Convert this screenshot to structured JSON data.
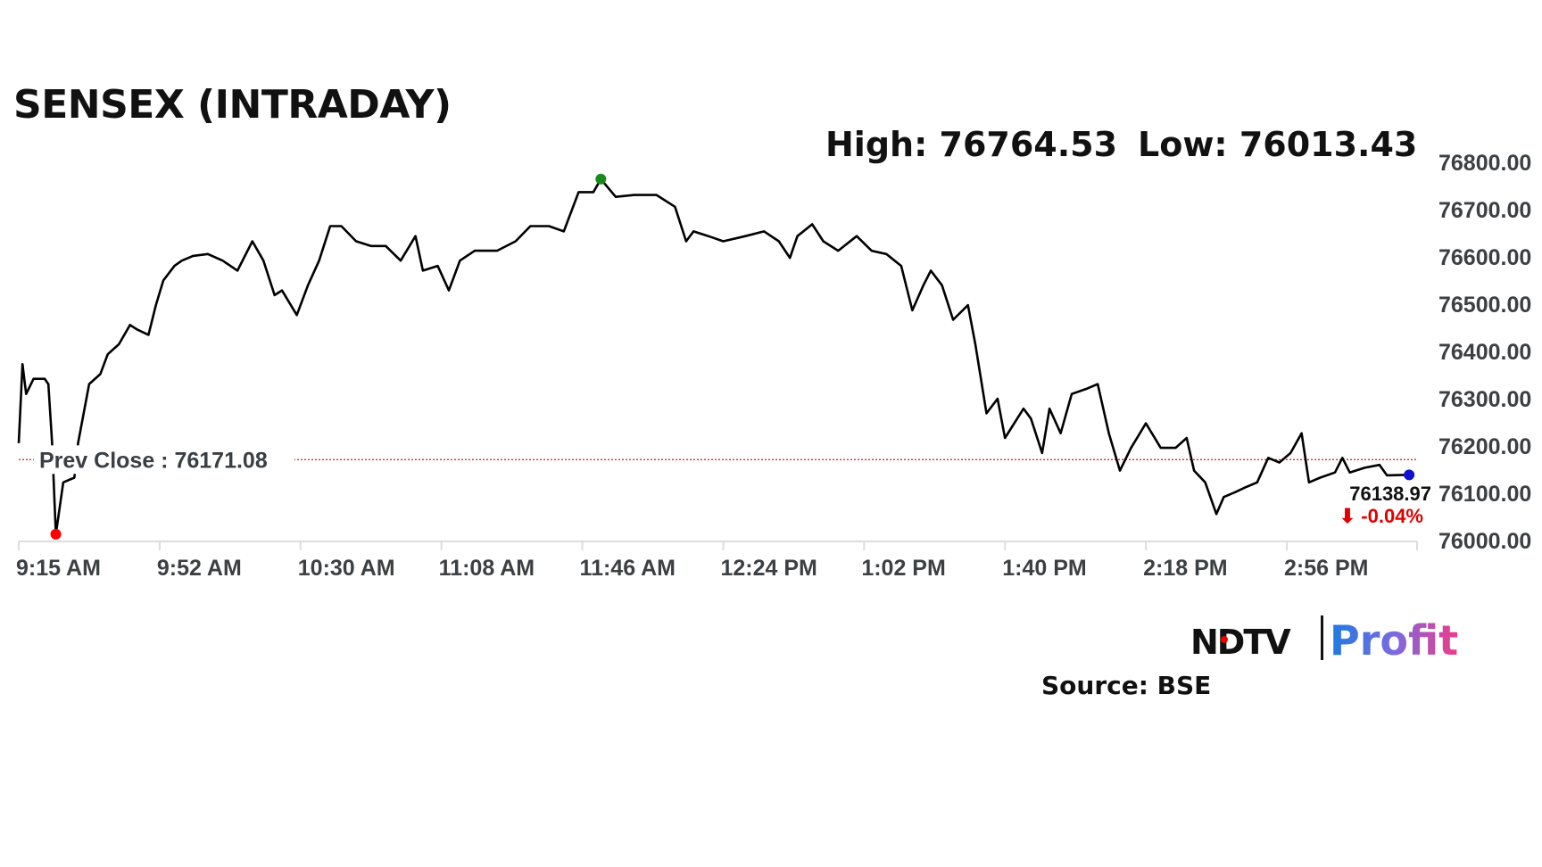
{
  "title": "SENSEX (INTRADAY)",
  "high_label": "High: 76764.53",
  "low_label": "Low: 76013.43",
  "source": "Source: BSE",
  "logo": {
    "part1": "NDTV",
    "part2": "Profit"
  },
  "colors": {
    "line": "#000000",
    "prev_close": "#d0312d",
    "high_marker": "#1a8a1a",
    "low_marker": "#ff0000",
    "last_marker": "#1010d0",
    "change": "#e00000",
    "axis_text": "#3c4043"
  },
  "chart_data": {
    "type": "line",
    "title": "SENSEX (INTRADAY)",
    "xlabel": "",
    "ylabel": "",
    "ylim": [
      76000,
      76800
    ],
    "xlim": [
      "9:15",
      "15:34"
    ],
    "grid": false,
    "y_ticks": [
      "76000.00",
      "76100.00",
      "76200.00",
      "76300.00",
      "76400.00",
      "76500.00",
      "76600.00",
      "76700.00",
      "76800.00"
    ],
    "x_ticks": [
      "9:15 AM",
      "9:52 AM",
      "10:30 AM",
      "11:08 AM",
      "11:46 AM",
      "12:24 PM",
      "1:02 PM",
      "1:40 PM",
      "2:18 PM",
      "2:56 PM"
    ],
    "x_tick_times": [
      "9:15",
      "9:53",
      "10:31",
      "11:09",
      "11:47",
      "12:25",
      "13:03",
      "13:41",
      "14:19",
      "14:57"
    ],
    "prev_close": {
      "label": "Prev Close : 76171.08",
      "value": 76171.08
    },
    "high": {
      "time": "11:52",
      "value": 76764.53
    },
    "low": {
      "time": "9:25",
      "value": 76013.43
    },
    "last": {
      "time": "15:30",
      "value": 76138.97,
      "label": "76138.97",
      "change": "⬇ -0.04%"
    },
    "series": [
      {
        "x": [
          "9:15",
          "9:16",
          "9:17",
          "9:19",
          "9:22",
          "9:23",
          "9:24",
          "9:25",
          "9:27",
          "9:30",
          "9:31",
          "9:34",
          "9:37",
          "9:39",
          "9:42",
          "9:45",
          "9:47",
          "9:50",
          "9:52",
          "9:54",
          "9:57",
          "9:59",
          "10:02",
          "10:06",
          "10:10",
          "10:14",
          "10:18",
          "10:21",
          "10:24",
          "10:26",
          "10:30",
          "10:33",
          "10:36",
          "10:39",
          "10:42",
          "10:46",
          "10:50",
          "10:54",
          "10:58",
          "11:02",
          "11:04",
          "11:08",
          "11:11",
          "11:14",
          "11:18",
          "11:24",
          "11:29",
          "11:33",
          "11:38",
          "11:42",
          "11:46",
          "11:50",
          "11:52",
          "11:56",
          "12:01",
          "12:07",
          "12:12",
          "12:15",
          "12:17",
          "12:21",
          "12:25",
          "12:31",
          "12:36",
          "12:40",
          "12:43",
          "12:45",
          "12:49",
          "12:52",
          "12:56",
          "13:01",
          "13:05",
          "13:09",
          "13:13",
          "13:16",
          "13:19",
          "13:21",
          "13:24",
          "13:27",
          "13:31",
          "13:33",
          "13:36",
          "13:39",
          "13:41",
          "13:46",
          "13:48",
          "13:51",
          "13:53",
          "13:56",
          "13:59",
          "14:03",
          "14:06",
          "14:09",
          "14:12",
          "14:15",
          "14:19",
          "14:23",
          "14:27",
          "14:30",
          "14:32",
          "14:35",
          "14:38",
          "14:40",
          "14:43",
          "14:46",
          "14:49",
          "14:52",
          "14:55",
          "14:58",
          "15:01",
          "15:03",
          "15:06",
          "15:10",
          "15:12",
          "15:14",
          "15:18",
          "15:22",
          "15:24",
          "15:30"
        ],
        "values": [
          76206,
          76373,
          76310,
          76342,
          76342,
          76331,
          76206,
          76013.43,
          76123,
          76133,
          76206,
          76331,
          76352,
          76394,
          76415,
          76456,
          76446,
          76435,
          76498,
          76550,
          76581,
          76592,
          76602,
          76606,
          76592,
          76571,
          76633,
          76592,
          76519,
          76529,
          76477,
          76540,
          76592,
          76665,
          76665,
          76633,
          76623,
          76623,
          76592,
          76644,
          76571,
          76581,
          76529,
          76592,
          76613,
          76613,
          76633,
          76665,
          76665,
          76654,
          76737,
          76737,
          76764.53,
          76727,
          76731,
          76731,
          76706,
          76633,
          76654,
          76644,
          76633,
          76644,
          76654,
          76633,
          76598,
          76644,
          76669,
          76633,
          76613,
          76644,
          76613,
          76606,
          76581,
          76487,
          76540,
          76571,
          76540,
          76467,
          76498,
          76415,
          76269,
          76300,
          76217,
          76279,
          76258,
          76185,
          76279,
          76227,
          76310,
          76321,
          76331,
          76227,
          76148,
          76196,
          76248,
          76196,
          76196,
          76217,
          76148,
          76123,
          76056,
          76092,
          76102,
          76113,
          76123,
          76175,
          76165,
          76185,
          76227,
          76123,
          76133,
          76144,
          76175,
          76144,
          76154,
          76160,
          76138,
          76138.97
        ]
      }
    ]
  }
}
